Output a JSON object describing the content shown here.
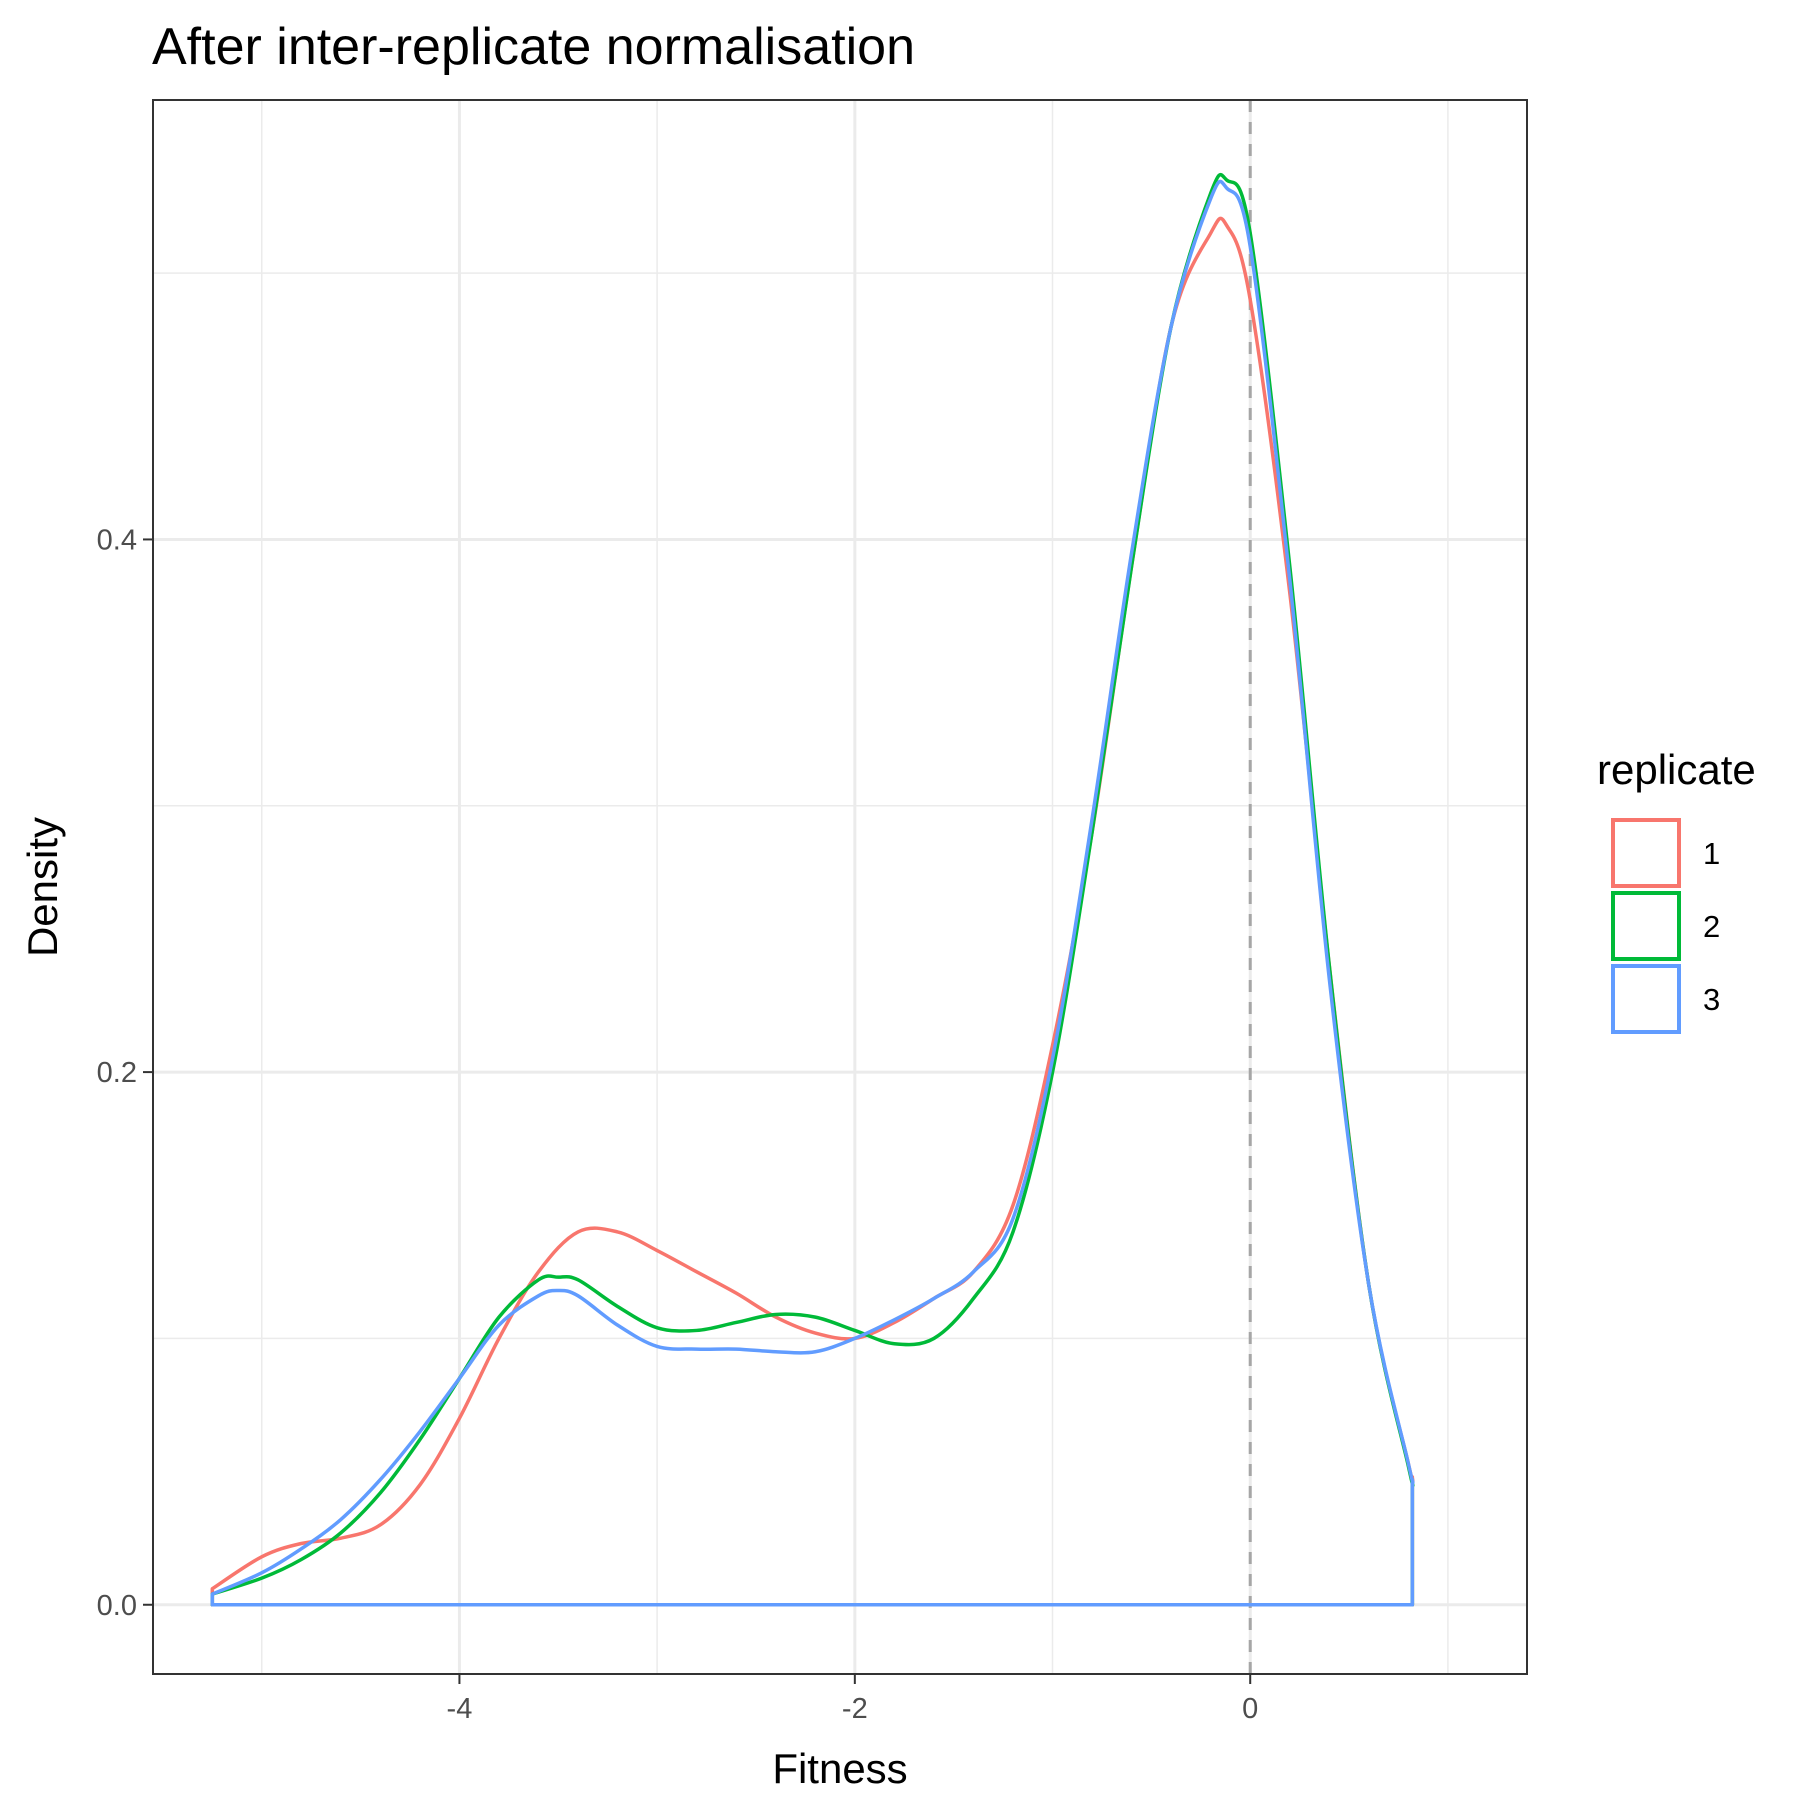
{
  "chart_data": {
    "type": "line",
    "title": "After inter-replicate normalisation",
    "xlabel": "Fitness",
    "ylabel": "Density",
    "xlim": [
      -5.55,
      1.4
    ],
    "ylim": [
      -0.026,
      0.565
    ],
    "x_ticks": [
      -4,
      -2,
      0
    ],
    "x_tick_labels": [
      "-4",
      "-2",
      "0"
    ],
    "x_minor_gridlines": [
      -5,
      -3,
      -1,
      1
    ],
    "y_ticks": [
      0.0,
      0.2,
      0.4
    ],
    "y_tick_labels": [
      "0.0",
      "0.2",
      "0.4"
    ],
    "y_minor_gridlines": [
      0.1,
      0.3,
      0.5
    ],
    "grid": true,
    "reference_line": {
      "x": 0,
      "style": "dashed",
      "color": "#a6a6a6"
    },
    "legend": {
      "title": "replicate",
      "position": "right"
    },
    "series": [
      {
        "name": "1",
        "color": "#F8766D",
        "x": [
          -5.25,
          -5.0,
          -4.8,
          -4.6,
          -4.4,
          -4.2,
          -4.0,
          -3.8,
          -3.6,
          -3.4,
          -3.2,
          -3.0,
          -2.8,
          -2.6,
          -2.4,
          -2.2,
          -2.0,
          -1.8,
          -1.6,
          -1.4,
          -1.2,
          -1.0,
          -0.8,
          -0.6,
          -0.4,
          -0.2,
          -0.12,
          0.0,
          0.2,
          0.4,
          0.6,
          0.8,
          0.82
        ],
        "y": [
          0.006,
          0.018,
          0.023,
          0.025,
          0.03,
          0.045,
          0.07,
          0.1,
          0.125,
          0.14,
          0.14,
          0.133,
          0.125,
          0.117,
          0.108,
          0.102,
          0.1,
          0.106,
          0.115,
          0.125,
          0.15,
          0.21,
          0.29,
          0.39,
          0.48,
          0.515,
          0.518,
          0.49,
          0.38,
          0.24,
          0.12,
          0.053,
          0.048
        ]
      },
      {
        "name": "2",
        "color": "#00BA38",
        "x": [
          -5.25,
          -5.0,
          -4.8,
          -4.6,
          -4.4,
          -4.2,
          -4.0,
          -3.8,
          -3.6,
          -3.5,
          -3.4,
          -3.2,
          -3.0,
          -2.8,
          -2.6,
          -2.4,
          -2.2,
          -2.0,
          -1.8,
          -1.6,
          -1.4,
          -1.2,
          -1.0,
          -0.8,
          -0.6,
          -0.4,
          -0.2,
          -0.12,
          0.0,
          0.2,
          0.4,
          0.6,
          0.8,
          0.82
        ],
        "y": [
          0.004,
          0.01,
          0.017,
          0.027,
          0.042,
          0.062,
          0.085,
          0.108,
          0.122,
          0.123,
          0.122,
          0.112,
          0.104,
          0.103,
          0.106,
          0.109,
          0.108,
          0.103,
          0.098,
          0.1,
          0.115,
          0.14,
          0.2,
          0.29,
          0.39,
          0.48,
          0.53,
          0.535,
          0.515,
          0.39,
          0.24,
          0.12,
          0.052,
          0.046
        ]
      },
      {
        "name": "3",
        "color": "#619CFF",
        "x": [
          -5.25,
          -5.0,
          -4.8,
          -4.6,
          -4.4,
          -4.2,
          -4.0,
          -3.8,
          -3.6,
          -3.5,
          -3.4,
          -3.2,
          -3.0,
          -2.8,
          -2.6,
          -2.4,
          -2.2,
          -2.0,
          -1.8,
          -1.6,
          -1.4,
          -1.2,
          -1.0,
          -0.8,
          -0.6,
          -0.4,
          -0.2,
          -0.12,
          0.0,
          0.2,
          0.4,
          0.6,
          0.8,
          0.82
        ],
        "y": [
          0.004,
          0.012,
          0.021,
          0.032,
          0.047,
          0.065,
          0.085,
          0.105,
          0.116,
          0.118,
          0.116,
          0.105,
          0.097,
          0.096,
          0.096,
          0.095,
          0.095,
          0.1,
          0.107,
          0.115,
          0.125,
          0.145,
          0.205,
          0.295,
          0.395,
          0.48,
          0.528,
          0.532,
          0.51,
          0.385,
          0.235,
          0.12,
          0.053,
          0.047
        ]
      }
    ]
  }
}
